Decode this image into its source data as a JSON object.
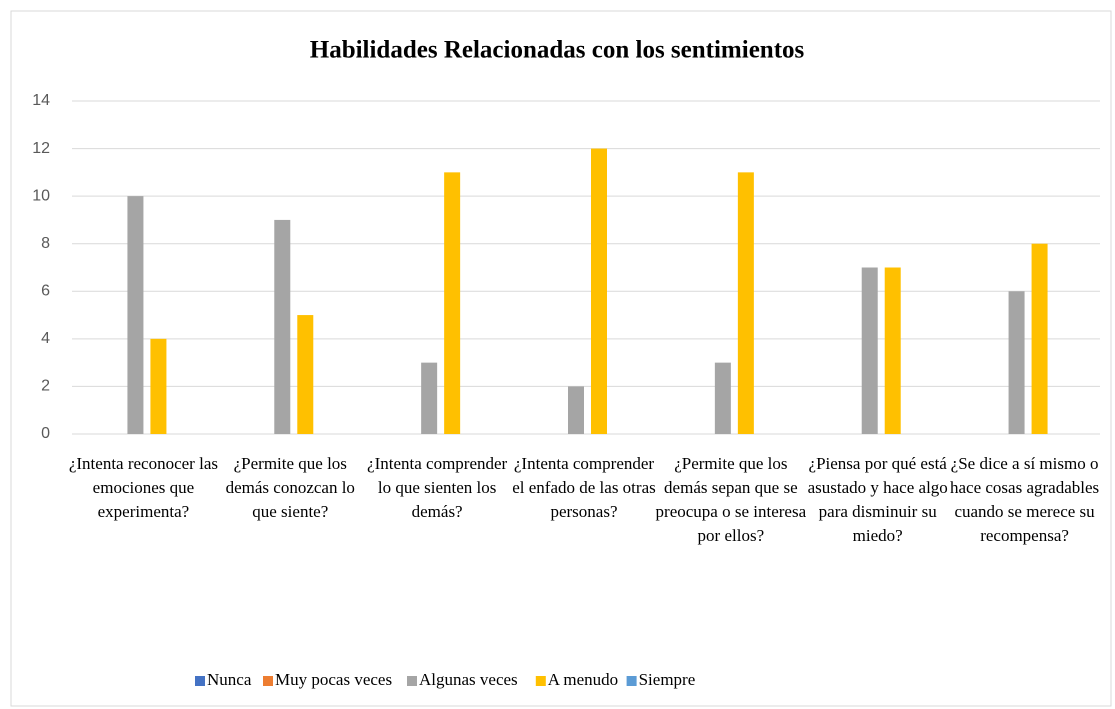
{
  "chart_data": {
    "type": "bar",
    "title": "Habilidades Relacionadas con los sentimientos",
    "categories": [
      "¿Intenta reconocer las emociones que experimenta?",
      "¿Permite que los demás conozcan lo que siente?",
      "¿Intenta comprender lo que sienten los demás?",
      "¿Intenta comprender el enfado de las otras personas?",
      "¿Permite que los demás sepan que se preocupa o se interesa por ellos?",
      "¿Piensa por qué está asustado y hace algo para disminuir su miedo?",
      "¿Se dice a sí mismo o hace cosas agradables cuando se merece su recompensa?"
    ],
    "series": [
      {
        "name": "Nunca",
        "color": "#4472c4",
        "values": [
          0,
          0,
          0,
          0,
          0,
          0,
          0
        ]
      },
      {
        "name": "Muy pocas veces",
        "color": "#ed7d31",
        "values": [
          0,
          0,
          0,
          0,
          0,
          0,
          0
        ]
      },
      {
        "name": "Algunas veces",
        "color": "#a5a5a5",
        "values": [
          10,
          9,
          3,
          2,
          3,
          7,
          6
        ]
      },
      {
        "name": "A menudo",
        "color": "#ffc000",
        "values": [
          4,
          5,
          11,
          12,
          11,
          7,
          8
        ]
      },
      {
        "name": "Siempre",
        "color": "#5b9bd5",
        "values": [
          0,
          0,
          0,
          0,
          0,
          0,
          0
        ]
      }
    ],
    "ylim": [
      0,
      14
    ],
    "yticks": [
      0,
      2,
      4,
      6,
      8,
      10,
      12,
      14
    ],
    "grid": true,
    "legend": "bottom"
  }
}
